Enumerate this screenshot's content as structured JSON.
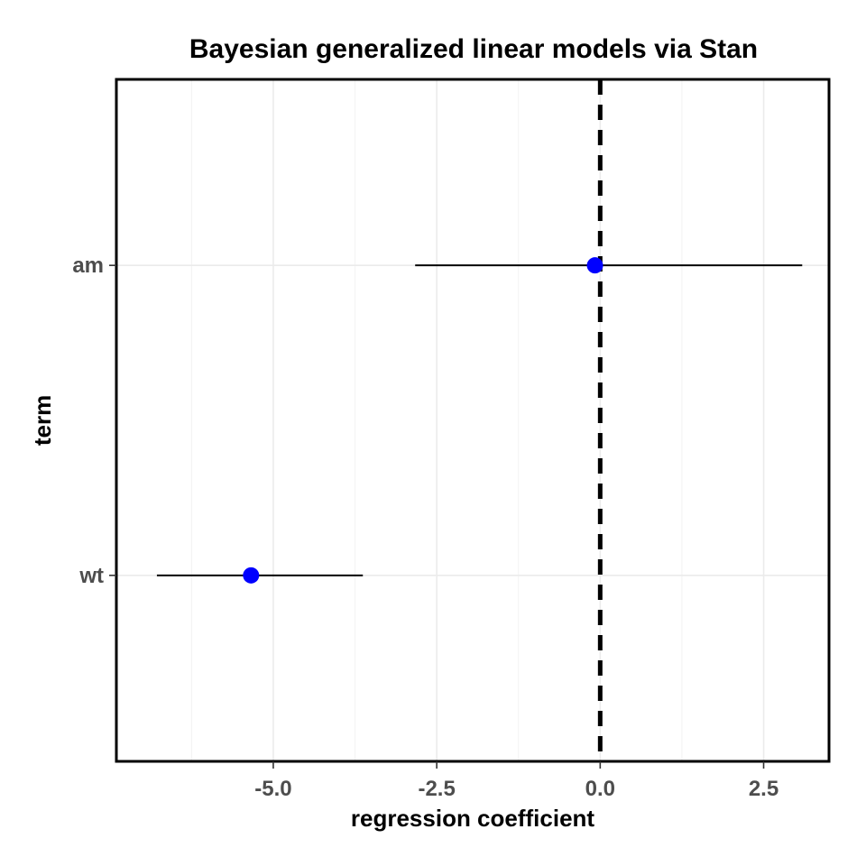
{
  "chart_data": {
    "type": "scatter",
    "title": "Bayesian generalized linear models via Stan",
    "xlabel": "regression coefficient",
    "ylabel": "term",
    "xlim": [
      -7.4,
      3.5
    ],
    "x_ticks": [
      -5.0,
      -2.5,
      0.0,
      2.5
    ],
    "x_tick_labels": [
      "-5.0",
      "-2.5",
      "0.0",
      "2.5"
    ],
    "categories": [
      "wt",
      "am"
    ],
    "series": [
      {
        "points": [
          {
            "term": "am",
            "estimate": -0.08,
            "conf_low": -2.83,
            "conf_high": 3.09
          },
          {
            "term": "wt",
            "estimate": -5.34,
            "conf_low": -6.78,
            "conf_high": -3.63
          }
        ],
        "color": "#0000ff"
      }
    ],
    "reference_line": {
      "x": 0.0,
      "style": "dashed",
      "color": "#000000"
    },
    "grid": true,
    "legend": "none"
  }
}
